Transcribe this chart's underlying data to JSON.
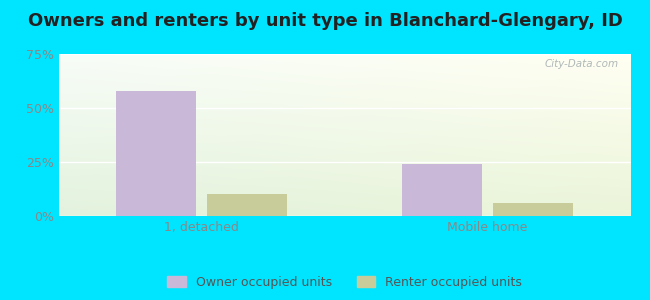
{
  "title": "Owners and renters by unit type in Blanchard-Glengary, ID",
  "categories": [
    "1, detached",
    "Mobile home"
  ],
  "owner_values": [
    58.0,
    24.0
  ],
  "renter_values": [
    10.0,
    6.0
  ],
  "owner_color": "#c9b8d8",
  "renter_color": "#c8cc9a",
  "ylim": [
    0,
    75
  ],
  "yticks": [
    0,
    25,
    50,
    75
  ],
  "yticklabels": [
    "0%",
    "25%",
    "50%",
    "75%"
  ],
  "bg_color": "#00e5ff",
  "plot_bg_left_bottom": "#d6f0d6",
  "plot_bg_right_top": "#e8f8f8",
  "bar_width": 0.28,
  "watermark": "City-Data.com",
  "title_fontsize": 13,
  "tick_fontsize": 9,
  "legend_fontsize": 9,
  "grid_color": "#ffffff",
  "tick_color": "#888888"
}
